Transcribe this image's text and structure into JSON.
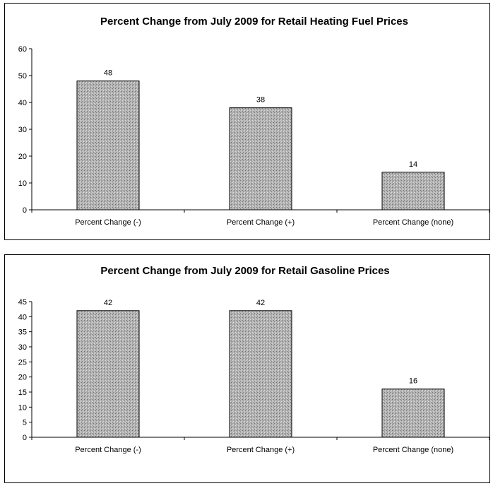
{
  "chart_data": [
    {
      "type": "bar",
      "title": "Percent Change from July 2009 for Retail Heating Fuel Prices",
      "xlabel": "",
      "ylabel": "",
      "categories": [
        "Percent Change (-)",
        "Percent Change (+)",
        "Percent Change (none)"
      ],
      "values": [
        48,
        38,
        14
      ],
      "data_labels": [
        "48",
        "38",
        "14"
      ],
      "ylim": [
        0,
        60
      ],
      "yticks": [
        "0",
        "10",
        "20",
        "30",
        "40",
        "50",
        "60"
      ],
      "grid": false,
      "legend": "none",
      "bar_color": "#a9a9a9"
    },
    {
      "type": "bar",
      "title": "Percent Change from July 2009 for Retail Gasoline Prices",
      "xlabel": "",
      "ylabel": "",
      "categories": [
        "Percent Change (-)",
        "Percent Change (+)",
        "Percent Change (none)"
      ],
      "values": [
        42,
        42,
        16
      ],
      "data_labels": [
        "42",
        "42",
        "16"
      ],
      "ylim": [
        0,
        45
      ],
      "yticks": [
        "0",
        "5",
        "10",
        "15",
        "20",
        "25",
        "30",
        "35",
        "40",
        "45"
      ],
      "grid": false,
      "legend": "none",
      "bar_color": "#a9a9a9"
    }
  ]
}
